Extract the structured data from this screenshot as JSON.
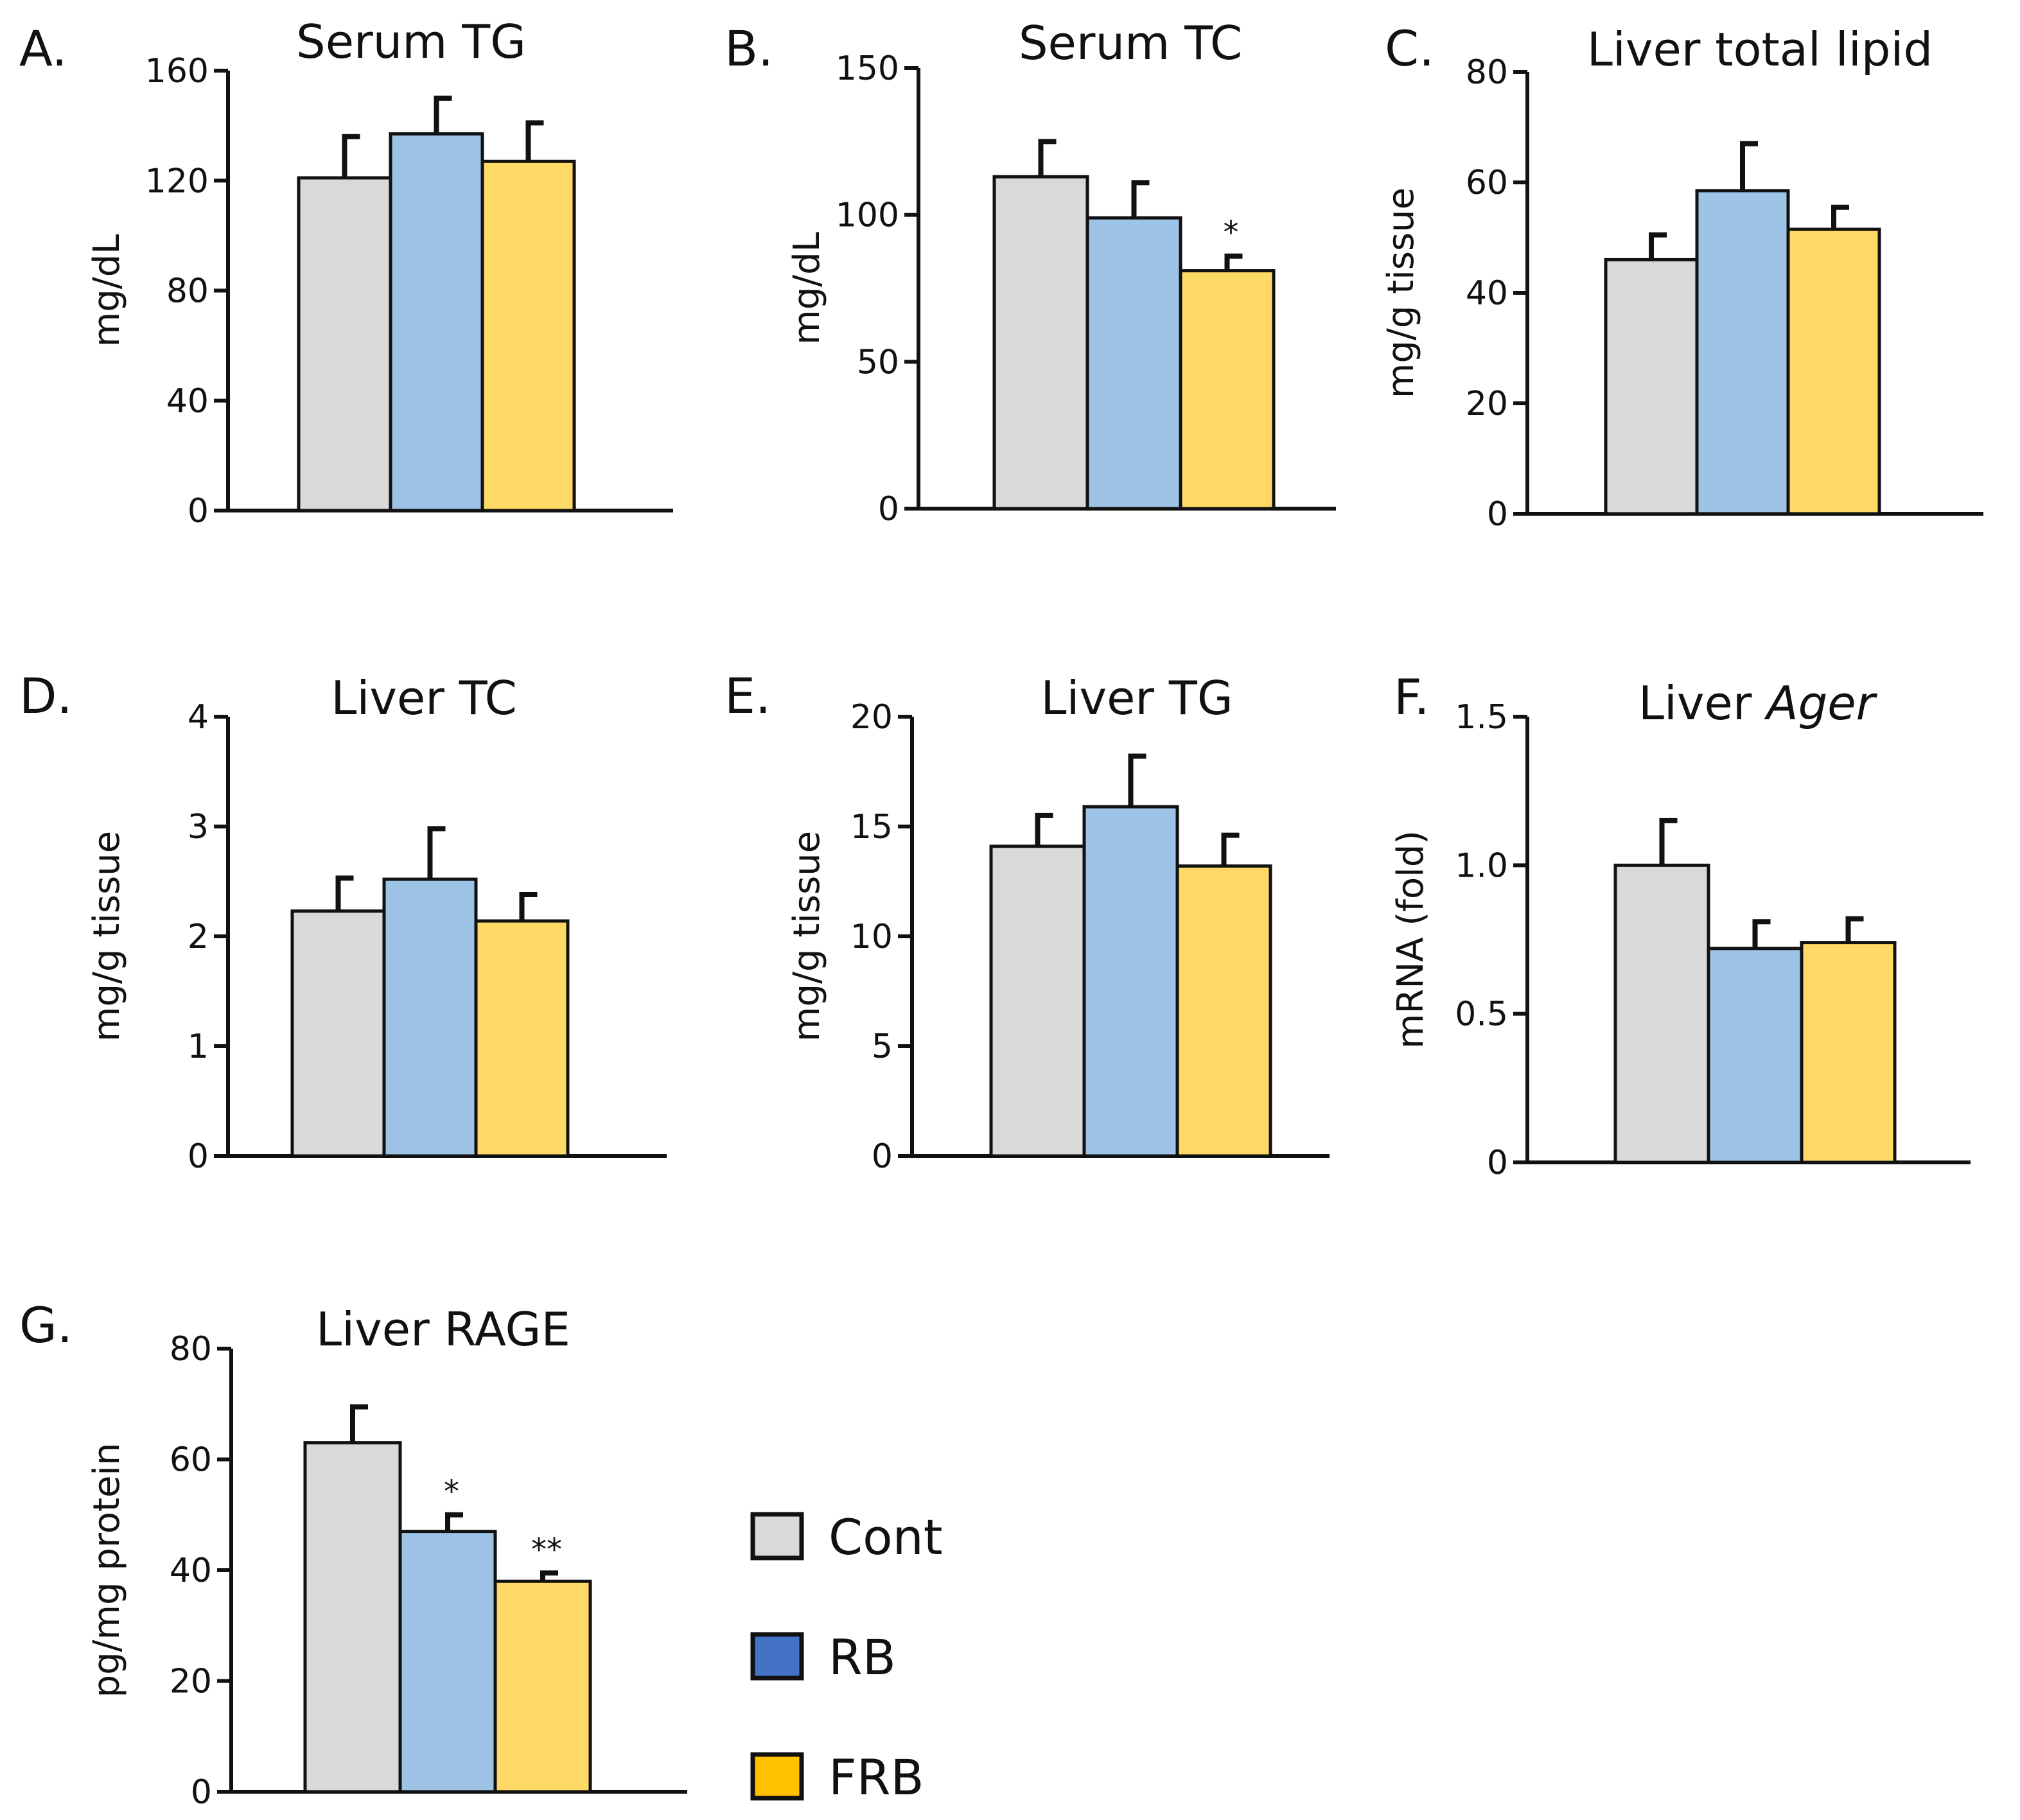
{
  "chart_data": [
    {
      "type": "bar",
      "panel": "A.",
      "title": "Serum TG",
      "title_italic": "",
      "ylabel": "mg/dL",
      "ylim": [
        0,
        160
      ],
      "yticks": [
        0,
        40,
        80,
        120,
        160
      ],
      "categories": [
        "Cont",
        "RB",
        "FRB"
      ],
      "values": [
        121,
        137,
        127
      ],
      "errors": [
        15,
        13,
        14
      ],
      "significance": [
        "",
        "",
        ""
      ]
    },
    {
      "type": "bar",
      "panel": "B.",
      "title": "Serum TC",
      "title_italic": "",
      "ylabel": "mg/dL",
      "ylim": [
        0,
        150
      ],
      "yticks": [
        0,
        50,
        100,
        150
      ],
      "categories": [
        "Cont",
        "RB",
        "FRB"
      ],
      "values": [
        113,
        99,
        81
      ],
      "errors": [
        12,
        12,
        5
      ],
      "significance": [
        "",
        "",
        "*"
      ]
    },
    {
      "type": "bar",
      "panel": "C.",
      "title": "Liver total lipid",
      "title_italic": "",
      "ylabel": "mg/g tissue",
      "ylim": [
        0,
        80
      ],
      "yticks": [
        0,
        20,
        40,
        60,
        80
      ],
      "categories": [
        "Cont",
        "RB",
        "FRB"
      ],
      "values": [
        46,
        58.5,
        51.5
      ],
      "errors": [
        4.5,
        8.5,
        4
      ],
      "significance": [
        "",
        "",
        ""
      ]
    },
    {
      "type": "bar",
      "panel": "D.",
      "title": "Liver TC",
      "title_italic": "",
      "ylabel": "mg/g tissue",
      "ylim": [
        0,
        4
      ],
      "yticks": [
        0,
        1,
        2,
        3,
        4
      ],
      "categories": [
        "Cont",
        "RB",
        "FRB"
      ],
      "values": [
        2.23,
        2.52,
        2.14
      ],
      "errors": [
        0.3,
        0.46,
        0.24
      ],
      "significance": [
        "",
        "",
        ""
      ]
    },
    {
      "type": "bar",
      "panel": "E.",
      "title": "Liver TG",
      "title_italic": "",
      "ylabel": "mg/g tissue",
      "ylim": [
        0,
        20
      ],
      "yticks": [
        0,
        5,
        10,
        15,
        20
      ],
      "categories": [
        "Cont",
        "RB",
        "FRB"
      ],
      "values": [
        14.1,
        15.9,
        13.2
      ],
      "errors": [
        1.4,
        2.3,
        1.4
      ],
      "significance": [
        "",
        "",
        ""
      ]
    },
    {
      "type": "bar",
      "panel": "F.",
      "title": "Liver ",
      "title_italic": "Ager",
      "ylabel": "mRNA (fold)",
      "ylim": [
        0,
        1.5
      ],
      "yticks": [
        "0",
        "0.5",
        "1.0",
        "1.5"
      ],
      "categories": [
        "Cont",
        "RB",
        "FRB"
      ],
      "values": [
        1.0,
        0.72,
        0.74
      ],
      "errors": [
        0.15,
        0.09,
        0.08
      ],
      "significance": [
        "",
        "",
        ""
      ]
    },
    {
      "type": "bar",
      "panel": "G.",
      "title": "Liver RAGE",
      "title_italic": "",
      "ylabel": "pg/mg protein",
      "ylim": [
        0,
        80
      ],
      "yticks": [
        0,
        20,
        40,
        60,
        80
      ],
      "categories": [
        "Cont",
        "RB",
        "FRB"
      ],
      "values": [
        63,
        47,
        38
      ],
      "errors": [
        6.5,
        3,
        1.5
      ],
      "significance": [
        "",
        "*",
        "**"
      ]
    }
  ],
  "colors": {
    "bars": [
      "#d9d9d9",
      "#9dc3e6",
      "#ffd966"
    ],
    "legend": [
      "#d9d9d9",
      "#4472c4",
      "#ffc000"
    ],
    "stroke": "#111111"
  },
  "legend": [
    {
      "label": "Cont",
      "color": "#d9d9d9"
    },
    {
      "label": "RB",
      "color": "#4472c4"
    },
    {
      "label": "FRB",
      "color": "#ffc000"
    }
  ]
}
